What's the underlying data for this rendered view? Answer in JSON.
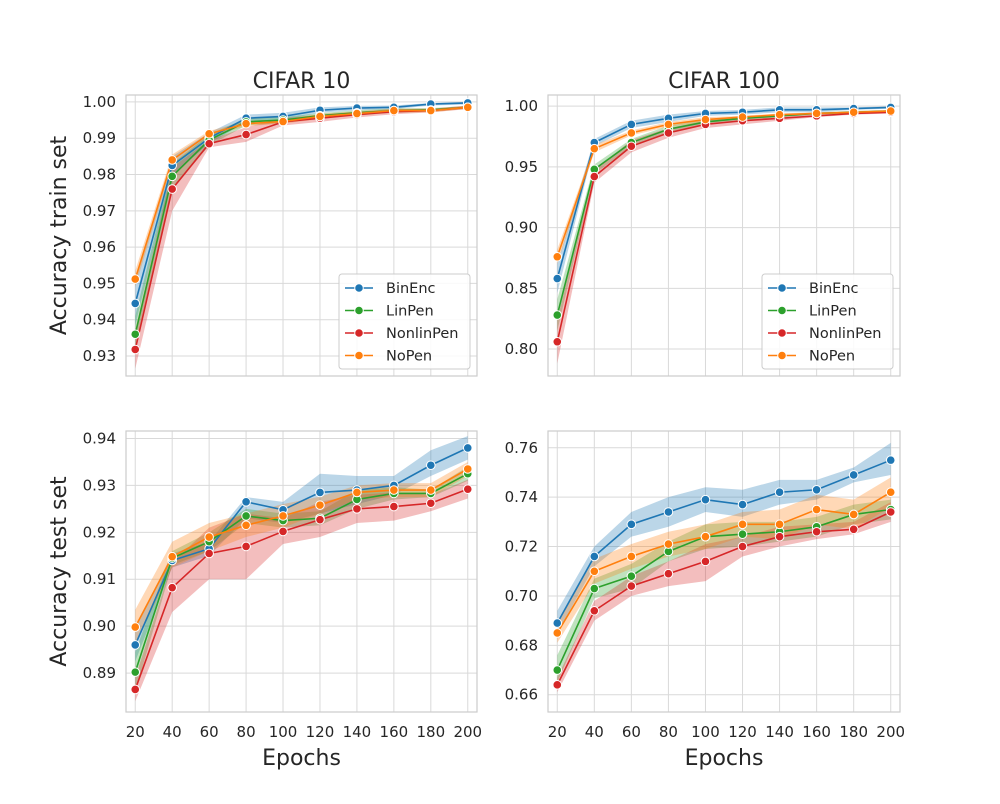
{
  "chart_data": [
    {
      "type": "line",
      "title": "CIFAR 10",
      "xlabel": "",
      "ylabel": "Accuracy train set",
      "xlim": [
        15,
        205
      ],
      "ylim": [
        0.9245,
        1.0019
      ],
      "xticks": [
        20,
        40,
        60,
        80,
        100,
        120,
        140,
        160,
        180,
        200
      ],
      "yticks": [
        0.93,
        0.94,
        0.95,
        0.96,
        0.97,
        0.98,
        0.99,
        1.0
      ],
      "ytick_labels": [
        "0.93",
        "0.94",
        "0.95",
        "0.96",
        "0.97",
        "0.98",
        "0.99",
        "1.00"
      ],
      "legend": true,
      "legend_location": "lower-right",
      "x": [
        20,
        40,
        60,
        80,
        100,
        120,
        140,
        160,
        180,
        200
      ],
      "series": [
        {
          "name": "BinEnc",
          "color": "#1f77b4",
          "values": [
            0.9445,
            0.9825,
            0.99,
            0.9955,
            0.996,
            0.9977,
            0.9983,
            0.9985,
            0.9994,
            0.9997
          ],
          "lower": [
            0.9385,
            0.98,
            0.9885,
            0.9945,
            0.995,
            0.997,
            0.9977,
            0.998,
            0.999,
            0.9993
          ],
          "upper": [
            0.9505,
            0.985,
            0.9915,
            0.9965,
            0.997,
            0.9985,
            0.9989,
            0.999,
            0.9997,
            1.0
          ]
        },
        {
          "name": "LinPen",
          "color": "#2ca02c",
          "values": [
            0.936,
            0.9795,
            0.9895,
            0.9945,
            0.995,
            0.9962,
            0.997,
            0.9976,
            0.9978,
            0.9985
          ],
          "lower": [
            0.931,
            0.976,
            0.988,
            0.9935,
            0.9942,
            0.9955,
            0.9963,
            0.997,
            0.9973,
            0.9981
          ],
          "upper": [
            0.941,
            0.983,
            0.991,
            0.9955,
            0.9958,
            0.9969,
            0.9977,
            0.9982,
            0.9983,
            0.9989
          ]
        },
        {
          "name": "NonlinPen",
          "color": "#d62728",
          "values": [
            0.9318,
            0.976,
            0.9885,
            0.991,
            0.9945,
            0.9955,
            0.9965,
            0.9973,
            0.9976,
            0.9985
          ],
          "lower": [
            0.9265,
            0.97,
            0.9875,
            0.989,
            0.9935,
            0.9945,
            0.9957,
            0.9966,
            0.9971,
            0.998
          ],
          "upper": [
            0.937,
            0.982,
            0.9895,
            0.993,
            0.9955,
            0.9965,
            0.9973,
            0.998,
            0.9981,
            0.999
          ]
        },
        {
          "name": "NoPen",
          "color": "#ff7f0e",
          "values": [
            0.9512,
            0.984,
            0.9912,
            0.994,
            0.9946,
            0.996,
            0.9968,
            0.9976,
            0.9976,
            0.9985
          ],
          "lower": [
            0.949,
            0.9825,
            0.9905,
            0.9933,
            0.994,
            0.9953,
            0.9962,
            0.9971,
            0.9971,
            0.9981
          ],
          "upper": [
            0.9535,
            0.9855,
            0.992,
            0.9947,
            0.9952,
            0.9967,
            0.9974,
            0.9981,
            0.9981,
            0.9989
          ]
        }
      ]
    },
    {
      "type": "line",
      "title": "CIFAR 100",
      "xlabel": "",
      "ylabel": "",
      "xlim": [
        15,
        205
      ],
      "ylim": [
        0.7778,
        1.0092
      ],
      "xticks": [
        20,
        40,
        60,
        80,
        100,
        120,
        140,
        160,
        180,
        200
      ],
      "yticks": [
        0.8,
        0.85,
        0.9,
        0.95,
        1.0
      ],
      "ytick_labels": [
        "0.80",
        "0.85",
        "0.90",
        "0.95",
        "1.00"
      ],
      "legend": true,
      "legend_location": "lower-right",
      "x": [
        20,
        40,
        60,
        80,
        100,
        120,
        140,
        160,
        180,
        200
      ],
      "series": [
        {
          "name": "BinEnc",
          "color": "#1f77b4",
          "values": [
            0.858,
            0.97,
            0.985,
            0.99,
            0.994,
            0.995,
            0.997,
            0.997,
            0.998,
            0.999
          ],
          "lower": [
            0.846,
            0.967,
            0.982,
            0.987,
            0.992,
            0.993,
            0.995,
            0.995,
            0.997,
            0.998
          ],
          "upper": [
            0.87,
            0.973,
            0.988,
            0.993,
            0.996,
            0.997,
            0.999,
            0.999,
            0.999,
            1.0
          ]
        },
        {
          "name": "LinPen",
          "color": "#2ca02c",
          "values": [
            0.828,
            0.948,
            0.97,
            0.981,
            0.987,
            0.99,
            0.992,
            0.994,
            0.995,
            0.996
          ],
          "lower": [
            0.815,
            0.944,
            0.967,
            0.978,
            0.985,
            0.988,
            0.991,
            0.993,
            0.994,
            0.995
          ],
          "upper": [
            0.841,
            0.952,
            0.973,
            0.984,
            0.989,
            0.992,
            0.993,
            0.995,
            0.996,
            0.997
          ]
        },
        {
          "name": "NonlinPen",
          "color": "#d62728",
          "values": [
            0.806,
            0.942,
            0.967,
            0.978,
            0.985,
            0.988,
            0.99,
            0.992,
            0.994,
            0.995
          ],
          "lower": [
            0.788,
            0.937,
            0.962,
            0.974,
            0.982,
            0.985,
            0.988,
            0.991,
            0.993,
            0.994
          ],
          "upper": [
            0.824,
            0.947,
            0.972,
            0.982,
            0.988,
            0.991,
            0.992,
            0.993,
            0.995,
            0.996
          ]
        },
        {
          "name": "NoPen",
          "color": "#ff7f0e",
          "values": [
            0.876,
            0.965,
            0.978,
            0.985,
            0.989,
            0.991,
            0.993,
            0.994,
            0.995,
            0.996
          ],
          "lower": [
            0.87,
            0.962,
            0.976,
            0.983,
            0.987,
            0.99,
            0.992,
            0.993,
            0.994,
            0.995
          ],
          "upper": [
            0.882,
            0.968,
            0.98,
            0.987,
            0.991,
            0.992,
            0.994,
            0.995,
            0.996,
            0.997
          ]
        }
      ]
    },
    {
      "type": "line",
      "title": "",
      "xlabel": "Epochs",
      "ylabel": "Accuracy test set",
      "xlim": [
        15,
        205
      ],
      "ylim": [
        0.8817,
        0.9416
      ],
      "xticks": [
        20,
        40,
        60,
        80,
        100,
        120,
        140,
        160,
        180,
        200
      ],
      "yticks": [
        0.89,
        0.9,
        0.91,
        0.92,
        0.93,
        0.94
      ],
      "ytick_labels": [
        "0.89",
        "0.90",
        "0.91",
        "0.92",
        "0.93",
        "0.94"
      ],
      "legend": false,
      "x": [
        20,
        40,
        60,
        80,
        100,
        120,
        140,
        160,
        180,
        200
      ],
      "series": [
        {
          "name": "BinEnc",
          "color": "#1f77b4",
          "values": [
            0.896,
            0.914,
            0.9165,
            0.9265,
            0.9248,
            0.9285,
            0.929,
            0.93,
            0.9343,
            0.938
          ],
          "lower": [
            0.8925,
            0.9125,
            0.915,
            0.923,
            0.922,
            0.924,
            0.926,
            0.928,
            0.932,
            0.9355
          ],
          "upper": [
            0.8995,
            0.9155,
            0.918,
            0.9275,
            0.9265,
            0.9325,
            0.932,
            0.932,
            0.9375,
            0.9405
          ]
        },
        {
          "name": "LinPen",
          "color": "#2ca02c",
          "values": [
            0.8902,
            0.9145,
            0.918,
            0.9235,
            0.9225,
            0.923,
            0.927,
            0.9283,
            0.9283,
            0.9325
          ],
          "lower": [
            0.886,
            0.913,
            0.916,
            0.922,
            0.921,
            0.9215,
            0.925,
            0.927,
            0.9275,
            0.931
          ],
          "upper": [
            0.8945,
            0.916,
            0.92,
            0.925,
            0.924,
            0.9245,
            0.929,
            0.9296,
            0.9291,
            0.934
          ]
        },
        {
          "name": "NonlinPen",
          "color": "#d62728",
          "values": [
            0.8865,
            0.9082,
            0.9155,
            0.917,
            0.9202,
            0.9227,
            0.925,
            0.9255,
            0.9262,
            0.9292
          ],
          "lower": [
            0.884,
            0.903,
            0.91,
            0.91,
            0.9175,
            0.919,
            0.922,
            0.9225,
            0.9245,
            0.9272
          ],
          "upper": [
            0.889,
            0.9135,
            0.921,
            0.924,
            0.923,
            0.9265,
            0.928,
            0.9285,
            0.928,
            0.9312
          ]
        },
        {
          "name": "NoPen",
          "color": "#ff7f0e",
          "values": [
            0.8998,
            0.9148,
            0.919,
            0.9215,
            0.9235,
            0.9258,
            0.9285,
            0.929,
            0.929,
            0.9335
          ],
          "lower": [
            0.896,
            0.9125,
            0.916,
            0.919,
            0.921,
            0.924,
            0.927,
            0.9275,
            0.9275,
            0.932
          ],
          "upper": [
            0.9035,
            0.918,
            0.922,
            0.924,
            0.926,
            0.9276,
            0.93,
            0.9305,
            0.9305,
            0.935
          ]
        }
      ]
    },
    {
      "type": "line",
      "title": "",
      "xlabel": "Epochs",
      "ylabel": "",
      "xlim": [
        15,
        205
      ],
      "ylim": [
        0.653,
        0.7668
      ],
      "xticks": [
        20,
        40,
        60,
        80,
        100,
        120,
        140,
        160,
        180,
        200
      ],
      "yticks": [
        0.66,
        0.68,
        0.7,
        0.72,
        0.74,
        0.76
      ],
      "ytick_labels": [
        "0.66",
        "0.68",
        "0.70",
        "0.72",
        "0.74",
        "0.76"
      ],
      "legend": false,
      "x": [
        20,
        40,
        60,
        80,
        100,
        120,
        140,
        160,
        180,
        200
      ],
      "series": [
        {
          "name": "BinEnc",
          "color": "#1f77b4",
          "values": [
            0.689,
            0.716,
            0.729,
            0.734,
            0.739,
            0.737,
            0.742,
            0.743,
            0.749,
            0.755
          ],
          "lower": [
            0.685,
            0.712,
            0.724,
            0.728,
            0.734,
            0.732,
            0.737,
            0.739,
            0.746,
            0.749
          ],
          "upper": [
            0.694,
            0.72,
            0.734,
            0.74,
            0.744,
            0.743,
            0.747,
            0.747,
            0.752,
            0.762
          ]
        },
        {
          "name": "LinPen",
          "color": "#2ca02c",
          "values": [
            0.67,
            0.703,
            0.708,
            0.718,
            0.724,
            0.725,
            0.726,
            0.728,
            0.733,
            0.735
          ],
          "lower": [
            0.665,
            0.699,
            0.703,
            0.714,
            0.719,
            0.72,
            0.722,
            0.724,
            0.729,
            0.731
          ],
          "upper": [
            0.676,
            0.707,
            0.713,
            0.722,
            0.729,
            0.73,
            0.73,
            0.732,
            0.737,
            0.739
          ]
        },
        {
          "name": "NonlinPen",
          "color": "#d62728",
          "values": [
            0.664,
            0.694,
            0.704,
            0.709,
            0.714,
            0.72,
            0.724,
            0.726,
            0.727,
            0.734
          ],
          "lower": [
            0.661,
            0.69,
            0.7,
            0.704,
            0.706,
            0.716,
            0.72,
            0.723,
            0.725,
            0.73
          ],
          "upper": [
            0.667,
            0.698,
            0.708,
            0.714,
            0.721,
            0.724,
            0.728,
            0.729,
            0.73,
            0.738
          ]
        },
        {
          "name": "NoPen",
          "color": "#ff7f0e",
          "values": [
            0.685,
            0.71,
            0.716,
            0.721,
            0.724,
            0.729,
            0.729,
            0.735,
            0.733,
            0.742
          ],
          "lower": [
            0.681,
            0.705,
            0.711,
            0.716,
            0.719,
            0.724,
            0.723,
            0.729,
            0.727,
            0.736
          ],
          "upper": [
            0.689,
            0.715,
            0.721,
            0.726,
            0.729,
            0.734,
            0.735,
            0.741,
            0.739,
            0.748
          ]
        }
      ]
    }
  ]
}
